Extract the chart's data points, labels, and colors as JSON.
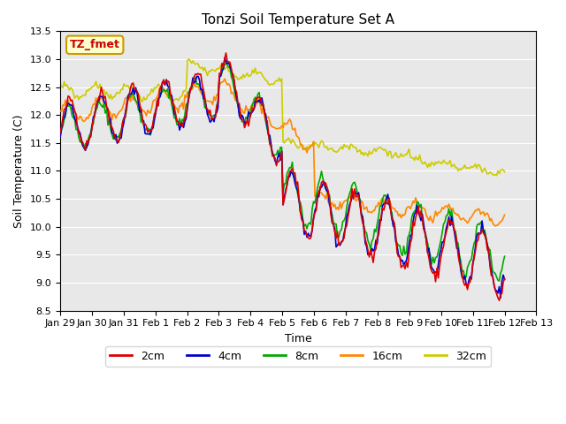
{
  "title": "Tonzi Soil Temperature Set A",
  "xlabel": "Time",
  "ylabel": "Soil Temperature (C)",
  "ylim": [
    8.5,
    13.5
  ],
  "annotation": "TZ_fmet",
  "annotation_bbox": {
    "facecolor": "#ffffcc",
    "edgecolor": "#cc9900",
    "boxstyle": "round,pad=0.3"
  },
  "annotation_color": "#cc0000",
  "line_colors": {
    "2cm": "#dd0000",
    "4cm": "#0000cc",
    "8cm": "#00aa00",
    "16cm": "#ff8800",
    "32cm": "#cccc00"
  },
  "line_width": 1.2,
  "bg_color": "#e8e8e8",
  "tick_labels": [
    "Jan 29",
    "Jan 30",
    "Jan 31",
    "Feb 1",
    "Feb 2",
    "Feb 3",
    "Feb 4",
    "Feb 5",
    "Feb 6",
    "Feb 7",
    "Feb 8",
    "Feb 9",
    "Feb 10",
    "Feb 11",
    "Feb 12",
    "Feb 13"
  ],
  "n_points": 336
}
